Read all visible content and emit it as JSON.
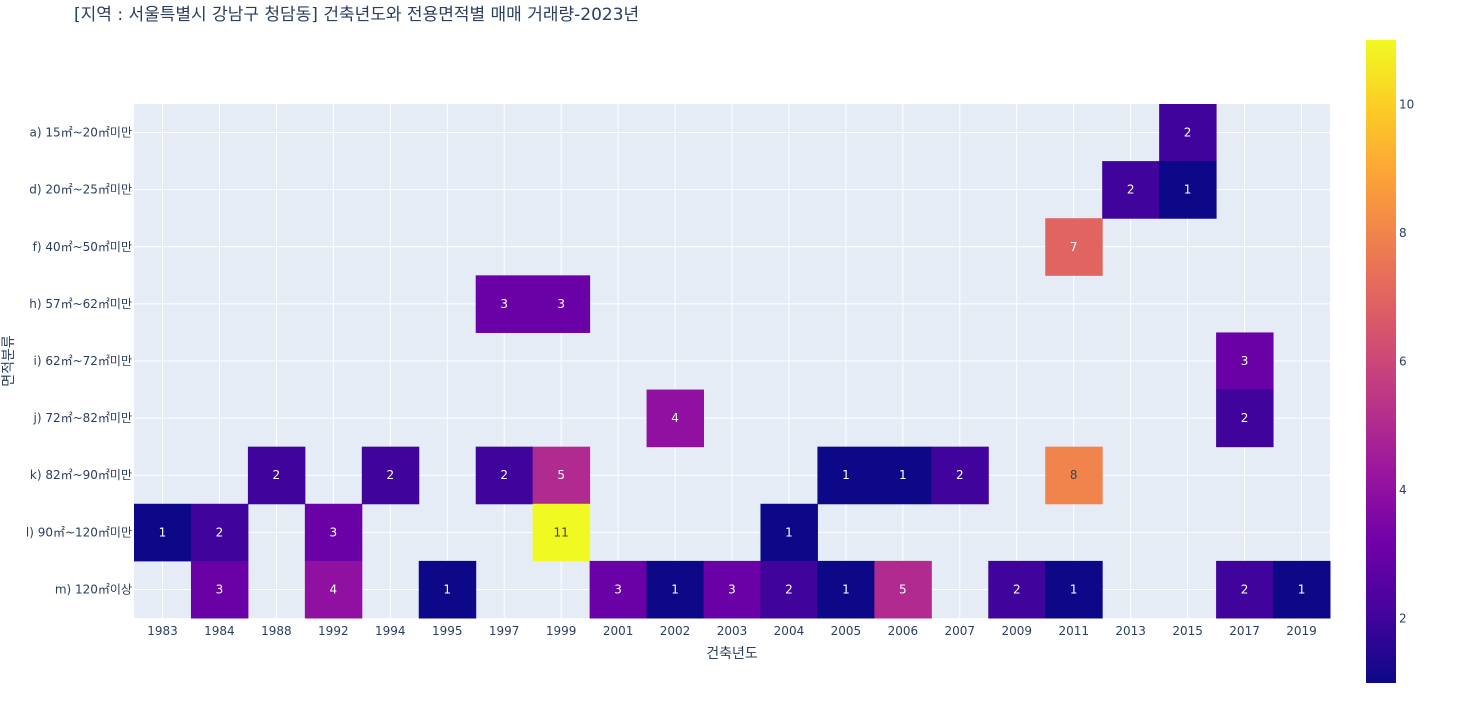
{
  "chart_data": {
    "type": "heatmap",
    "title": "[지역 : 서울특별시 강남구 청담동] 건축년도와 전용면적별 매매 거래량-2023년",
    "xlabel": "건축년도",
    "ylabel": "면적분류",
    "x": [
      "1983",
      "1984",
      "1988",
      "1992",
      "1994",
      "1995",
      "1997",
      "1999",
      "2001",
      "2002",
      "2003",
      "2004",
      "2005",
      "2006",
      "2007",
      "2009",
      "2011",
      "2013",
      "2015",
      "2017",
      "2019"
    ],
    "y": [
      "a) 15㎡~20㎡미만",
      "d) 20㎡~25㎡미만",
      "f) 40㎡~50㎡미만",
      "h) 57㎡~62㎡미만",
      "i) 62㎡~72㎡미만",
      "j) 72㎡~82㎡미만",
      "k) 82㎡~90㎡미만",
      "l) 90㎡~120㎡미만",
      "m) 120㎡이상"
    ],
    "z": [
      [
        null,
        null,
        null,
        null,
        null,
        null,
        null,
        null,
        null,
        null,
        null,
        null,
        null,
        null,
        null,
        null,
        null,
        null,
        2,
        null,
        null
      ],
      [
        null,
        null,
        null,
        null,
        null,
        null,
        null,
        null,
        null,
        null,
        null,
        null,
        null,
        null,
        null,
        null,
        null,
        2,
        1,
        null,
        null
      ],
      [
        null,
        null,
        null,
        null,
        null,
        null,
        null,
        null,
        null,
        null,
        null,
        null,
        null,
        null,
        null,
        null,
        7,
        null,
        null,
        null,
        null
      ],
      [
        null,
        null,
        null,
        null,
        null,
        null,
        3,
        3,
        null,
        null,
        null,
        null,
        null,
        null,
        null,
        null,
        null,
        null,
        null,
        null,
        null
      ],
      [
        null,
        null,
        null,
        null,
        null,
        null,
        null,
        null,
        null,
        null,
        null,
        null,
        null,
        null,
        null,
        null,
        null,
        null,
        null,
        3,
        null
      ],
      [
        null,
        null,
        null,
        null,
        null,
        null,
        null,
        null,
        null,
        4,
        null,
        null,
        null,
        null,
        null,
        null,
        null,
        null,
        null,
        2,
        null
      ],
      [
        null,
        null,
        2,
        null,
        2,
        null,
        2,
        5,
        null,
        null,
        null,
        null,
        1,
        1,
        2,
        null,
        8,
        null,
        null,
        null,
        null
      ],
      [
        1,
        2,
        null,
        3,
        null,
        null,
        null,
        11,
        null,
        null,
        null,
        1,
        null,
        null,
        null,
        null,
        null,
        null,
        null,
        null,
        null
      ],
      [
        null,
        3,
        null,
        4,
        null,
        1,
        null,
        null,
        3,
        1,
        3,
        2,
        1,
        5,
        null,
        2,
        1,
        null,
        null,
        2,
        1
      ]
    ],
    "zmin": 1,
    "zmax": 11,
    "colorscale": [
      "#0d0887",
      "#46039f",
      "#7201a8",
      "#9c179e",
      "#bd3786",
      "#d8576b",
      "#ed7953",
      "#fb9f3a",
      "#fdca26",
      "#f0f921"
    ],
    "colorbar": {
      "ticks": [
        2,
        4,
        6,
        8,
        10
      ]
    },
    "grid": true,
    "plot_background": "#e5ecf6"
  }
}
